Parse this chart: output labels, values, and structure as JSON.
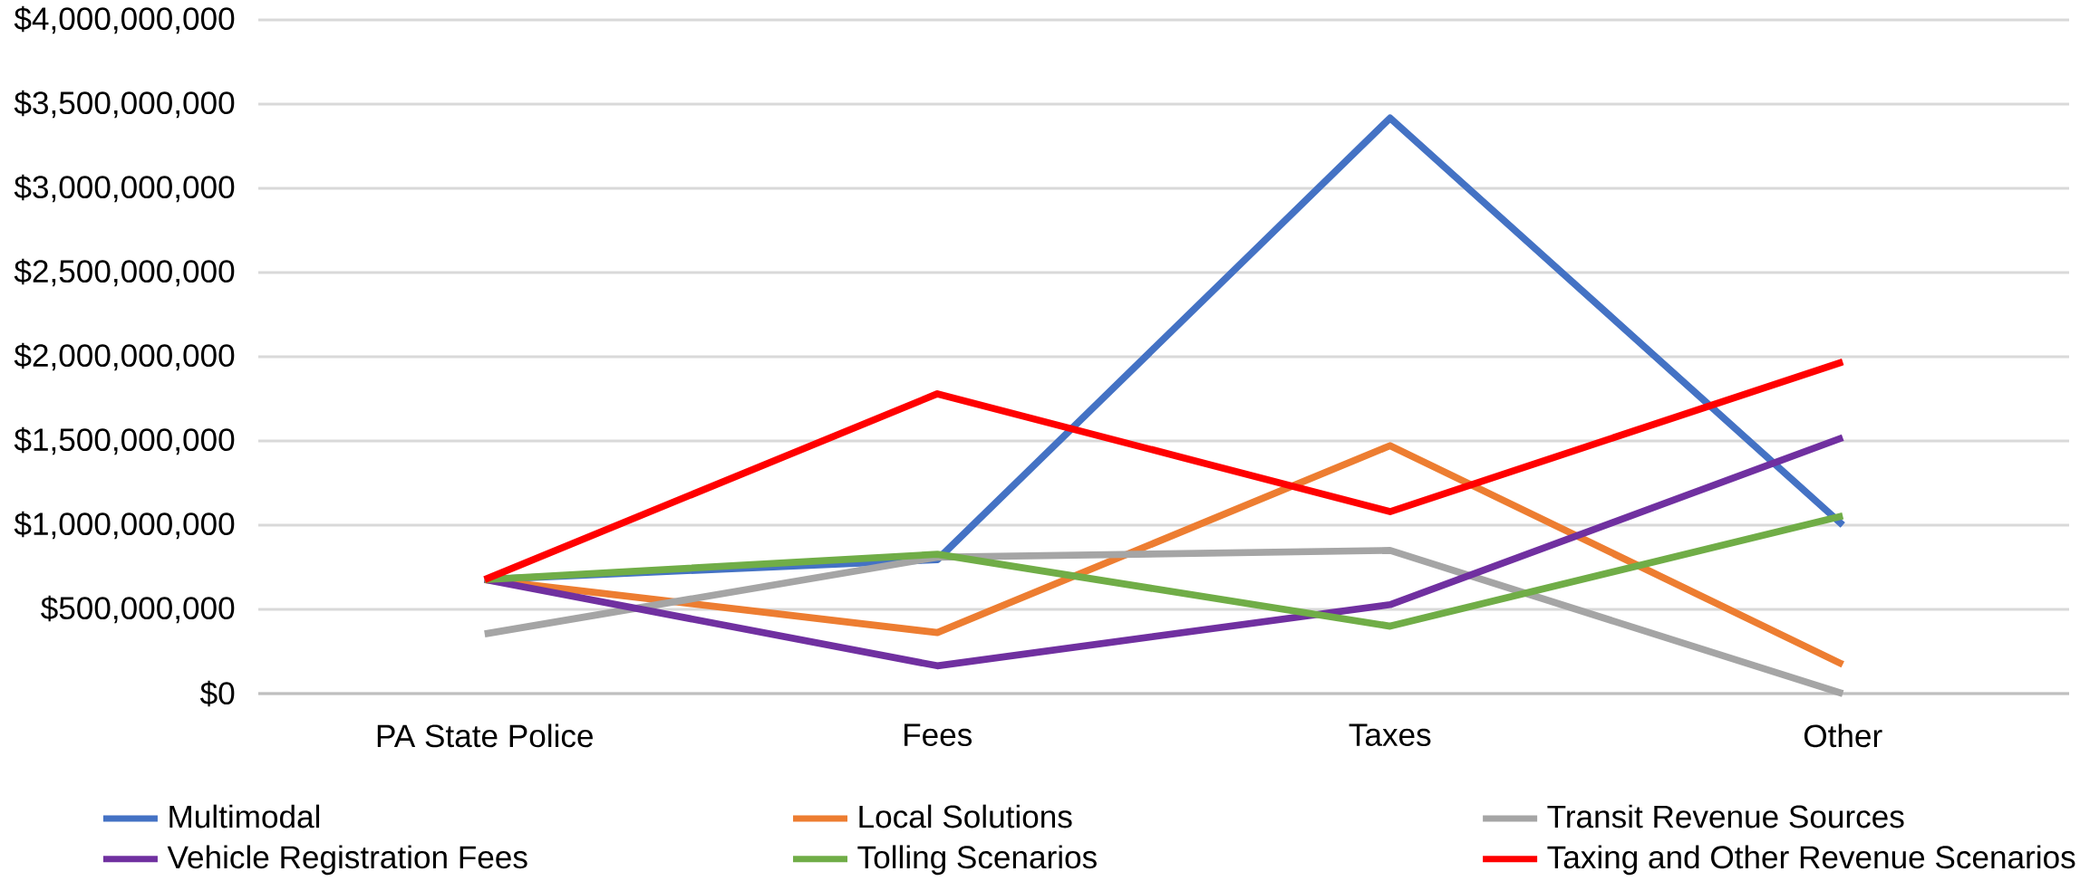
{
  "chart_data": {
    "type": "line",
    "categories": [
      "PA State Police",
      "Fees",
      "Taxes",
      "Other"
    ],
    "series": [
      {
        "name": "Multimodal",
        "color": "#4472c4",
        "values": [
          677000000,
          795000000,
          3417000000,
          1000000000
        ]
      },
      {
        "name": "Local Solutions",
        "color": "#ed7d31",
        "values": [
          677000000,
          362000000,
          1472000000,
          173000000
        ]
      },
      {
        "name": "Transit Revenue Sources",
        "color": "#a5a5a5",
        "values": [
          354000000,
          810000000,
          850000000,
          0
        ]
      },
      {
        "name": "Vehicle Registration Fees",
        "color": "#7030a0",
        "values": [
          677000000,
          165000000,
          528000000,
          1520000000
        ]
      },
      {
        "name": "Tolling Scenarios",
        "color": "#70ad47",
        "values": [
          677000000,
          827000000,
          400000000,
          1055000000
        ]
      },
      {
        "name": "Taxing and Other Revenue Scenarios",
        "color": "#ff0000",
        "values": [
          677000000,
          1780000000,
          1080000000,
          1970000000
        ]
      }
    ],
    "ylim": [
      0,
      4000000000
    ],
    "yticks": [
      {
        "value": 0,
        "label": "$0"
      },
      {
        "value": 500000000,
        "label": "$500,000,000"
      },
      {
        "value": 1000000000,
        "label": "$1,000,000,000"
      },
      {
        "value": 1500000000,
        "label": "$1,500,000,000"
      },
      {
        "value": 2000000000,
        "label": "$2,000,000,000"
      },
      {
        "value": 2500000000,
        "label": "$2,500,000,000"
      },
      {
        "value": 3000000000,
        "label": "$3,000,000,000"
      },
      {
        "value": 3500000000,
        "label": "$3,500,000,000"
      },
      {
        "value": 4000000000,
        "label": "$4,000,000,000"
      }
    ],
    "grid": "y",
    "legend": "bottom",
    "marker": "none",
    "line_style": "solid"
  }
}
